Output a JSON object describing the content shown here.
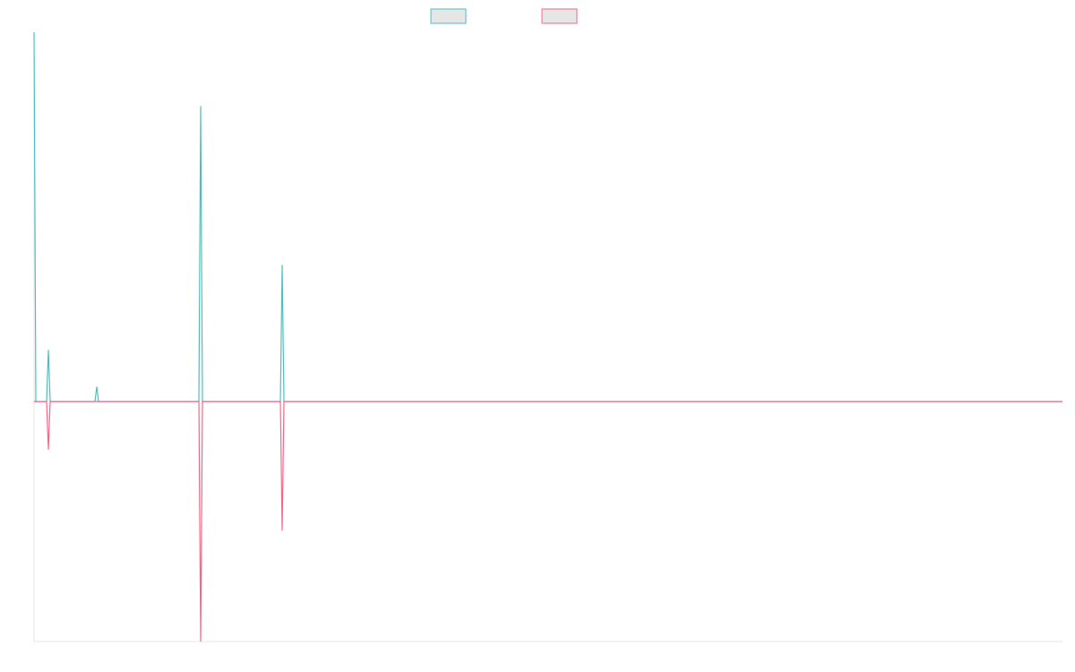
{
  "chart_data": {
    "type": "line",
    "x": [
      0,
      2,
      14,
      16,
      18,
      68,
      70,
      72,
      184,
      186,
      188,
      275,
      277,
      279,
      1148
    ],
    "series": [
      {
        "color": "#4bc0c0",
        "values": [
          100,
          0,
          0,
          14,
          0,
          0,
          4,
          0,
          0,
          80,
          0,
          0,
          37,
          0,
          0
        ]
      },
      {
        "color": "#ff6384",
        "values": [
          0,
          0,
          0,
          -13,
          0,
          0,
          0,
          0,
          0,
          -65,
          0,
          0,
          -35,
          0,
          0
        ]
      }
    ],
    "xlim": [
      0,
      1148
    ],
    "ylim": [
      -65,
      100
    ],
    "legend": "top",
    "grid": false
  }
}
